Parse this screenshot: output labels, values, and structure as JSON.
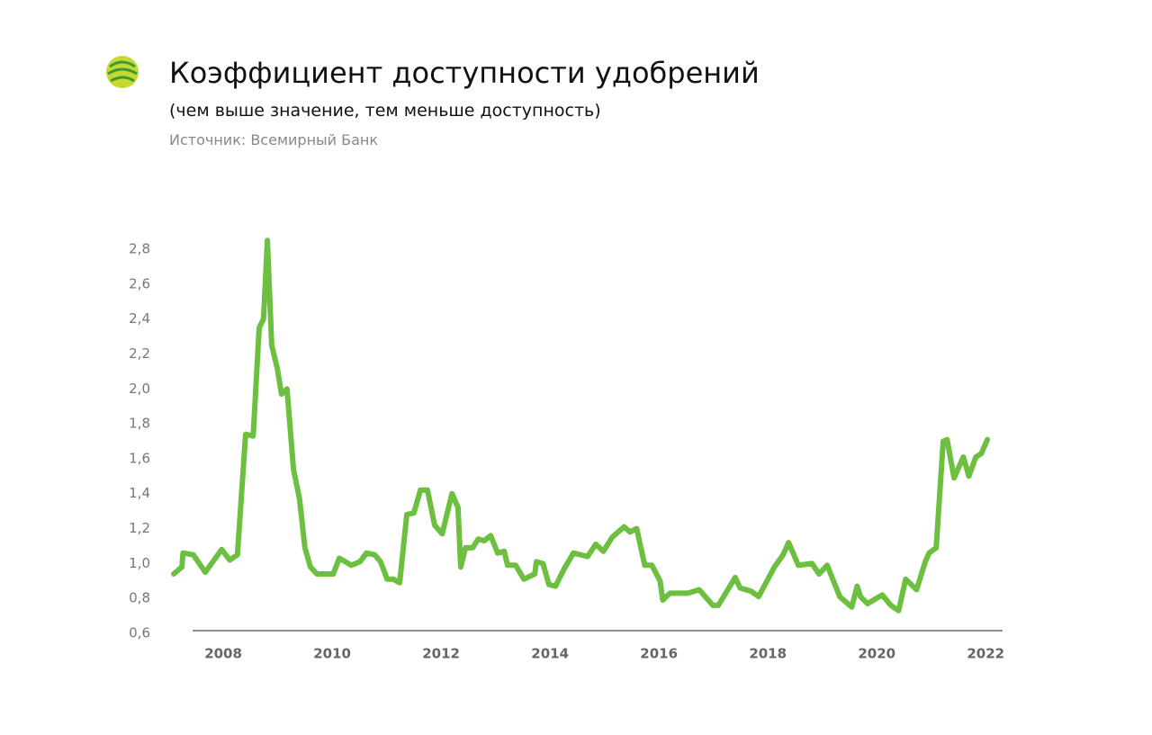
{
  "chart_data": {
    "type": "line",
    "title": "Коэффициент доступности удобрений",
    "subtitle": "(чем выше значение, тем меньше доступность)",
    "source": "Источник: Всемирный Банк",
    "x": [
      2007.09,
      2007.24,
      2007.26,
      2007.45,
      2007.67,
      2007.97,
      2008.12,
      2008.26,
      2008.41,
      2008.55,
      2008.66,
      2008.74,
      2008.81,
      2008.89,
      2008.99,
      2009.07,
      2009.17,
      2009.29,
      2009.4,
      2009.5,
      2009.6,
      2009.72,
      2010.02,
      2010.13,
      2010.35,
      2010.51,
      2010.63,
      2010.78,
      2010.89,
      2011.01,
      2011.12,
      2011.24,
      2011.37,
      2011.5,
      2011.62,
      2011.75,
      2011.88,
      2012.02,
      2012.2,
      2012.31,
      2012.36,
      2012.45,
      2012.58,
      2012.68,
      2012.79,
      2012.91,
      2013.04,
      2013.16,
      2013.22,
      2013.37,
      2013.52,
      2013.72,
      2013.75,
      2013.87,
      2013.98,
      2014.1,
      2014.26,
      2014.43,
      2014.69,
      2014.84,
      2014.98,
      2015.14,
      2015.36,
      2015.47,
      2015.59,
      2015.74,
      2015.87,
      2016.02,
      2016.07,
      2016.2,
      2016.53,
      2016.74,
      2016.99,
      2017.09,
      2017.4,
      2017.49,
      2017.7,
      2017.83,
      2018.12,
      2018.28,
      2018.38,
      2018.56,
      2018.81,
      2018.94,
      2019.09,
      2019.32,
      2019.54,
      2019.64,
      2019.7,
      2019.83,
      2020.1,
      2020.26,
      2020.4,
      2020.53,
      2020.73,
      2020.89,
      2020.96,
      2021.09,
      2021.22,
      2021.29,
      2021.42,
      2021.59,
      2021.69,
      2021.82,
      2021.92,
      2022.03
    ],
    "series": [
      {
        "color": "#6cbf3f",
        "values": [
          0.94,
          0.98,
          1.06,
          1.05,
          0.95,
          1.08,
          1.02,
          1.05,
          1.74,
          1.73,
          2.35,
          2.4,
          2.85,
          2.25,
          2.12,
          1.97,
          2.0,
          1.54,
          1.37,
          1.09,
          0.98,
          0.94,
          0.94,
          1.03,
          0.99,
          1.01,
          1.06,
          1.05,
          1.01,
          0.91,
          0.91,
          0.89,
          1.28,
          1.29,
          1.42,
          1.42,
          1.22,
          1.17,
          1.4,
          1.32,
          0.98,
          1.09,
          1.09,
          1.14,
          1.13,
          1.16,
          1.06,
          1.07,
          0.99,
          0.99,
          0.91,
          0.94,
          1.01,
          1.0,
          0.88,
          0.87,
          0.97,
          1.06,
          1.04,
          1.11,
          1.07,
          1.15,
          1.21,
          1.18,
          1.2,
          0.99,
          0.99,
          0.9,
          0.79,
          0.83,
          0.83,
          0.85,
          0.76,
          0.76,
          0.92,
          0.86,
          0.84,
          0.81,
          0.98,
          1.05,
          1.12,
          0.99,
          1.0,
          0.94,
          0.99,
          0.81,
          0.75,
          0.87,
          0.81,
          0.77,
          0.82,
          0.76,
          0.73,
          0.91,
          0.85,
          1.01,
          1.06,
          1.09,
          1.7,
          1.71,
          1.49,
          1.61,
          1.5,
          1.61,
          1.63,
          1.71
        ]
      }
    ],
    "xlim": [
      2007.09,
      2022.31
    ],
    "xticks": [
      2008,
      2010,
      2012,
      2014,
      2016,
      2018,
      2020,
      2022
    ],
    "ylim": [
      0.6,
      2.8
    ],
    "yticks": [
      {
        "value": 0.6,
        "label": "0,6"
      },
      {
        "value": 0.8,
        "label": "0,8"
      },
      {
        "value": 1.0,
        "label": "1,0"
      },
      {
        "value": 1.2,
        "label": "1,2"
      },
      {
        "value": 1.4,
        "label": "1,4"
      },
      {
        "value": 1.6,
        "label": "1,6"
      },
      {
        "value": 1.8,
        "label": "1,8"
      },
      {
        "value": 2.0,
        "label": "2,0"
      },
      {
        "value": 2.2,
        "label": "2,2"
      },
      {
        "value": 2.4,
        "label": "2,4"
      },
      {
        "value": 2.6,
        "label": "2,6"
      },
      {
        "value": 2.8,
        "label": "2,8"
      }
    ],
    "grid": false
  }
}
